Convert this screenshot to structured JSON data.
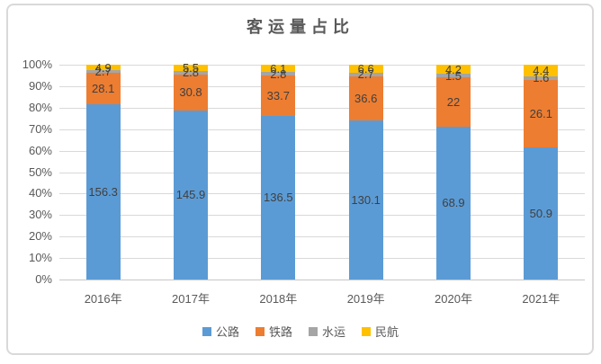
{
  "chart_data": {
    "type": "bar",
    "subtype": "stacked-100-percent",
    "title": "客运量占比",
    "categories": [
      "2016年",
      "2017年",
      "2018年",
      "2019年",
      "2020年",
      "2021年"
    ],
    "series": [
      {
        "key": "highway",
        "name": "公路",
        "color": "#5B9BD5",
        "values": [
          156.3,
          145.9,
          136.5,
          130.1,
          68.9,
          50.9
        ]
      },
      {
        "key": "railway",
        "name": "铁路",
        "color": "#ED7D31",
        "values": [
          28.1,
          30.8,
          33.7,
          36.6,
          22,
          26.1
        ]
      },
      {
        "key": "waterway",
        "name": "水运",
        "color": "#A5A5A5",
        "values": [
          2.7,
          2.8,
          2.8,
          2.7,
          1.5,
          1.6
        ]
      },
      {
        "key": "civil-aviation",
        "name": "民航",
        "color": "#FFC000",
        "values": [
          4.9,
          5.5,
          6.1,
          6.6,
          4.2,
          4.4
        ]
      }
    ],
    "y_axis": {
      "min": 0,
      "max": 100,
      "tick_step": 10,
      "tick_labels": [
        "0%",
        "10%",
        "20%",
        "30%",
        "40%",
        "50%",
        "60%",
        "70%",
        "80%",
        "90%",
        "100%"
      ]
    },
    "grid": true,
    "data_labels": true,
    "legend_position": "bottom",
    "legend": [
      "公路",
      "铁路",
      "水运",
      "民航"
    ]
  },
  "style": {
    "background": "#FFFFFF",
    "frame_border_color": "#D9D9D9",
    "gridline_color": "#D9D9D9",
    "title_color": "#595959",
    "axis_text_color": "#595959",
    "data_label_color": "#404040"
  }
}
